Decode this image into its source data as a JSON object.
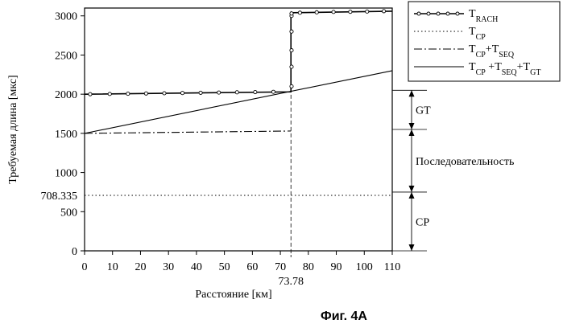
{
  "chart_data": {
    "type": "line",
    "xlabel": "Расстояние [км]",
    "ylabel": "Требуемая длина [мкс]",
    "xlim": [
      0,
      110
    ],
    "ylim": [
      0,
      3100
    ],
    "x_ticks": [
      0,
      10,
      20,
      30,
      40,
      50,
      60,
      70,
      80,
      90,
      100,
      110
    ],
    "x_tick_labels": [
      "0",
      "10",
      "20",
      "30",
      "40",
      "50",
      "60",
      "70",
      "80",
      "90",
      "100",
      "110"
    ],
    "y_ticks": [
      0,
      500,
      1000,
      1500,
      2000,
      2500,
      3000
    ],
    "y_tick_labels": [
      "0",
      "500",
      "1000",
      "1500",
      "2000",
      "2500",
      "3000"
    ],
    "extra_y_label": {
      "value": 708.335,
      "text": "708.335"
    },
    "extra_x_label": {
      "value": 73.78,
      "text": "73.78"
    },
    "series": [
      {
        "name": "T_RACH",
        "style": "solid-markers",
        "x": [
          0,
          73.78,
          73.78,
          110
        ],
        "y": [
          2000,
          2030,
          3040,
          3060
        ],
        "marker_x": [
          2,
          9,
          15.5,
          22,
          28.5,
          35,
          41.5,
          48,
          54.5,
          61,
          67.5,
          74,
          74,
          74,
          74,
          74,
          74,
          77,
          83,
          89,
          95,
          101,
          107
        ],
        "marker_y": [
          2000,
          2003,
          2006,
          2009,
          2012,
          2015,
          2018,
          2021,
          2024,
          2027,
          2030,
          2100,
          2350,
          2560,
          2800,
          3000,
          3030,
          3040,
          3045,
          3050,
          3052,
          3055,
          3060
        ]
      },
      {
        "name": "T_CP",
        "style": "dotted",
        "x": [
          0,
          110
        ],
        "y": [
          708.335,
          708.335
        ]
      },
      {
        "name": "T_CP+T_SEQ",
        "style": "dashdot",
        "x": [
          0,
          73.78
        ],
        "y": [
          1500,
          1530
        ]
      },
      {
        "name": "T_CP+T_SEQ+T_GT",
        "style": "solid",
        "x": [
          0,
          110
        ],
        "y": [
          1500,
          2300
        ]
      }
    ],
    "legend_entries": [
      {
        "main": "T",
        "sub": "RACH",
        "style": "solid-markers"
      },
      {
        "main": "T",
        "sub": "CP",
        "style": "dotted"
      },
      {
        "parts": [
          [
            "T",
            "CP"
          ],
          [
            "+T",
            "SEQ"
          ]
        ],
        "style": "dashdot"
      },
      {
        "parts": [
          [
            "T",
            "CP"
          ],
          [
            " +T",
            "SEQ"
          ],
          [
            "+T",
            "GT"
          ]
        ],
        "style": "solid"
      }
    ],
    "legend_position": "top-right outside",
    "annotations": [
      {
        "label": "GT",
        "from": 1550,
        "to": 2050
      },
      {
        "label": "Последовательность",
        "from": 750,
        "to": 1550
      },
      {
        "label": "CP",
        "from": 0,
        "to": 750
      }
    ],
    "caption": "Фиг. 4А"
  }
}
